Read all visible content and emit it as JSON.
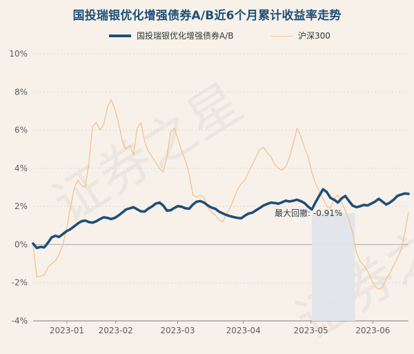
{
  "chart": {
    "title": "国投瑞银优化增强债券A/B近6个月累计收益率走势",
    "watermark": "证券之星",
    "drawdown_label": "最大回撤: -0.91%"
  },
  "chart_data": {
    "type": "line",
    "title": "国投瑞银优化增强债券A/B近6个月累计收益率走势",
    "xlabel": "",
    "ylabel": "",
    "x_ticks": [
      "2023-01",
      "2023-02",
      "2023-03",
      "2023-04",
      "2023-05",
      "2023-06"
    ],
    "y_ticks": [
      "10%",
      "8%",
      "6%",
      "4%",
      "2%",
      "0%",
      "-2%",
      "-4%"
    ],
    "ylim": [
      -4,
      10
    ],
    "grid": true,
    "legend_position": "top-center",
    "series": [
      {
        "name": "国投瑞银优化增强债券A/B",
        "color": "#1f4e79",
        "values": [
          0.05,
          -0.18,
          -0.12,
          -0.15,
          0.1,
          0.38,
          0.46,
          0.4,
          0.55,
          0.7,
          0.8,
          0.95,
          1.1,
          1.22,
          1.26,
          1.18,
          1.15,
          1.22,
          1.34,
          1.43,
          1.4,
          1.34,
          1.4,
          1.53,
          1.68,
          1.84,
          1.9,
          1.96,
          1.85,
          1.74,
          1.73,
          1.88,
          2.0,
          2.15,
          2.2,
          2.05,
          1.78,
          1.8,
          1.92,
          2.02,
          1.98,
          1.9,
          1.88,
          2.1,
          2.25,
          2.28,
          2.2,
          2.05,
          1.94,
          1.88,
          1.73,
          1.64,
          1.55,
          1.49,
          1.44,
          1.4,
          1.38,
          1.52,
          1.63,
          1.67,
          1.8,
          1.92,
          2.05,
          2.13,
          2.2,
          2.18,
          2.14,
          2.22,
          2.3,
          2.26,
          2.3,
          2.35,
          2.28,
          2.18,
          1.99,
          1.84,
          2.22,
          2.56,
          2.9,
          2.76,
          2.45,
          2.35,
          2.2,
          2.42,
          2.55,
          2.28,
          2.04,
          1.96,
          2.01,
          2.08,
          2.05,
          2.15,
          2.25,
          2.4,
          2.25,
          2.1,
          2.2,
          2.35,
          2.55,
          2.62,
          2.68,
          2.66
        ]
      },
      {
        "name": "沪深300",
        "color": "#f4c28d",
        "values": [
          -0.05,
          -1.7,
          -1.65,
          -1.6,
          -1.2,
          -1.0,
          -0.85,
          -0.5,
          0.0,
          0.8,
          1.9,
          2.9,
          3.4,
          3.1,
          3.0,
          4.3,
          6.2,
          6.4,
          6.0,
          6.3,
          7.2,
          7.6,
          7.1,
          6.4,
          5.4,
          5.0,
          5.2,
          4.7,
          6.1,
          6.4,
          5.4,
          4.9,
          4.6,
          4.3,
          4.0,
          3.8,
          4.6,
          5.9,
          6.1,
          5.5,
          4.9,
          4.4,
          3.7,
          2.6,
          2.5,
          2.6,
          2.45,
          1.95,
          1.7,
          1.55,
          1.3,
          1.18,
          1.6,
          1.9,
          2.4,
          2.9,
          3.2,
          3.4,
          3.8,
          4.2,
          4.6,
          5.0,
          5.1,
          4.8,
          4.6,
          4.2,
          4.0,
          3.9,
          4.1,
          4.6,
          5.3,
          6.1,
          5.7,
          5.1,
          4.6,
          3.8,
          3.2,
          2.8,
          2.4,
          2.0,
          1.9,
          2.4,
          2.6,
          2.2,
          1.8,
          1.3,
          0.6,
          -0.4,
          -0.9,
          -1.1,
          -1.4,
          -1.8,
          -2.2,
          -2.35,
          -2.25,
          -1.8,
          -1.5,
          -1.1,
          -0.7,
          -0.3,
          0.6,
          1.7
        ]
      }
    ],
    "annotations": [
      {
        "text": "最大回撤: -0.91%"
      }
    ]
  }
}
